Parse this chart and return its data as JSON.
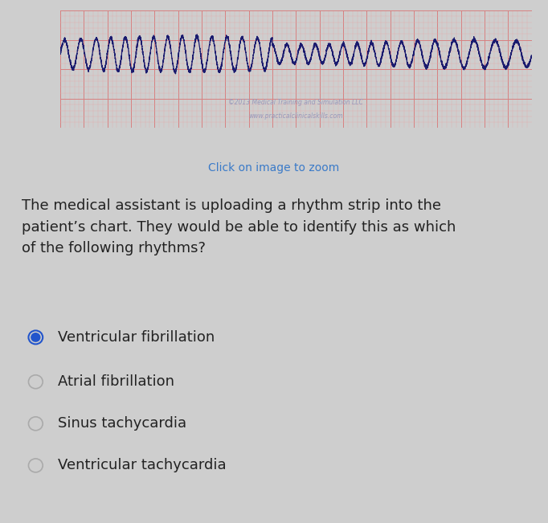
{
  "bg_color": "#cecece",
  "strip_bg": "#f2c0c0",
  "strip_grid_major": "#d88080",
  "strip_grid_minor": "#e8a8a8",
  "strip_line_color": "#1a1a6e",
  "watermark_line1": "©2013 Medical Training and Simulation LLC",
  "watermark_line2": "www.practicalclinicalskills.com",
  "watermark_color": "#9999bb",
  "click_text": "Click on image to zoom",
  "click_color": "#3a7ac8",
  "click_fontsize": 10,
  "question_text": "The medical assistant is uploading a rhythm strip into the\npatient’s chart. They would be able to identify this as which\nof the following rhythms?",
  "question_fontsize": 13,
  "question_color": "#222222",
  "options": [
    "Ventricular fibrillation",
    "Atrial fibrillation",
    "Sinus tachycardia",
    "Ventricular tachycardia"
  ],
  "selected_option": 0,
  "option_fontsize": 13,
  "option_color": "#222222",
  "radio_selected_fill": "#2255cc",
  "radio_selected_edge": "#2255cc",
  "radio_unselected_color": "#aaaaaa"
}
